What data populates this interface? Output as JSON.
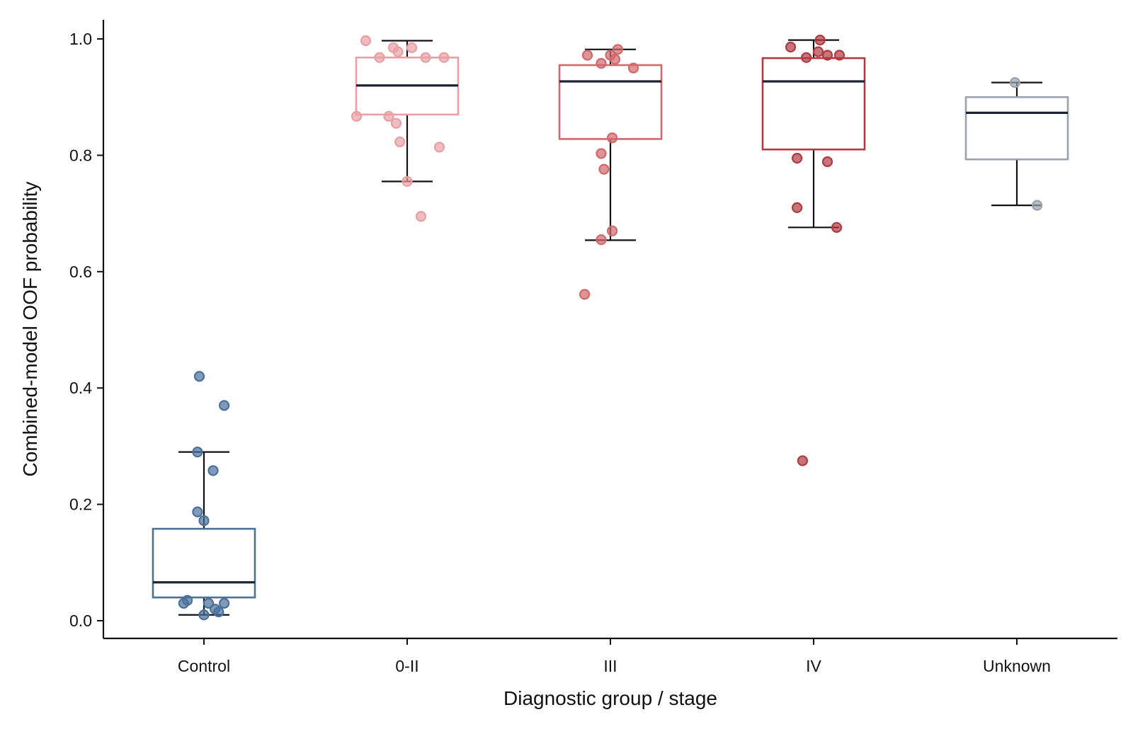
{
  "chart_data": {
    "type": "box",
    "title": "",
    "xlabel": "Diagnostic group / stage",
    "ylabel": "Combined-model OOF probability",
    "ylim": [
      -0.03,
      1.03
    ],
    "yticks": [
      0.0,
      0.2,
      0.4,
      0.6,
      0.8,
      1.0
    ],
    "ytick_labels": [
      "0.0",
      "0.2",
      "0.4",
      "0.6",
      "0.8",
      "1.0"
    ],
    "grid": false,
    "legend": "none",
    "categories": [
      "Control",
      "0-II",
      "III",
      "IV",
      "Unknown"
    ],
    "groups": [
      {
        "category": "Control",
        "color": "#4a719b",
        "box": {
          "whisker_low": 0.01,
          "q1": 0.04,
          "median": 0.066,
          "q3": 0.158,
          "whisker_high": 0.29
        },
        "points": [
          {
            "j": -0.05,
            "v": 0.42
          },
          {
            "j": 0.22,
            "v": 0.37
          },
          {
            "j": -0.07,
            "v": 0.29
          },
          {
            "j": 0.1,
            "v": 0.258
          },
          {
            "j": -0.07,
            "v": 0.187
          },
          {
            "j": 0.0,
            "v": 0.172
          },
          {
            "j": -0.22,
            "v": 0.03
          },
          {
            "j": -0.18,
            "v": 0.035
          },
          {
            "j": 0.05,
            "v": 0.03
          },
          {
            "j": 0.22,
            "v": 0.03
          },
          {
            "j": 0.12,
            "v": 0.02
          },
          {
            "j": 0.16,
            "v": 0.015
          },
          {
            "j": 0.0,
            "v": 0.01
          }
        ]
      },
      {
        "category": "0-II",
        "color": "#e8a0a4",
        "box": {
          "whisker_low": 0.755,
          "q1": 0.87,
          "median": 0.92,
          "q3": 0.968,
          "whisker_high": 0.997
        },
        "points": [
          {
            "j": -0.45,
            "v": 0.997
          },
          {
            "j": -0.15,
            "v": 0.985
          },
          {
            "j": 0.05,
            "v": 0.985
          },
          {
            "j": -0.1,
            "v": 0.978
          },
          {
            "j": -0.3,
            "v": 0.968
          },
          {
            "j": 0.2,
            "v": 0.968
          },
          {
            "j": 0.4,
            "v": 0.968
          },
          {
            "j": -0.55,
            "v": 0.867
          },
          {
            "j": -0.2,
            "v": 0.867
          },
          {
            "j": -0.12,
            "v": 0.855
          },
          {
            "j": -0.08,
            "v": 0.823
          },
          {
            "j": 0.35,
            "v": 0.814
          },
          {
            "j": 0.0,
            "v": 0.755
          },
          {
            "j": 0.15,
            "v": 0.695
          }
        ]
      },
      {
        "category": "III",
        "color": "#d0686c",
        "box": {
          "whisker_low": 0.654,
          "q1": 0.828,
          "median": 0.927,
          "q3": 0.955,
          "whisker_high": 0.982
        },
        "points": [
          {
            "j": 0.08,
            "v": 0.982
          },
          {
            "j": -0.25,
            "v": 0.972
          },
          {
            "j": 0.0,
            "v": 0.972
          },
          {
            "j": 0.05,
            "v": 0.965
          },
          {
            "j": -0.1,
            "v": 0.958
          },
          {
            "j": 0.25,
            "v": 0.95
          },
          {
            "j": 0.02,
            "v": 0.83
          },
          {
            "j": -0.1,
            "v": 0.803
          },
          {
            "j": -0.07,
            "v": 0.776
          },
          {
            "j": 0.02,
            "v": 0.67
          },
          {
            "j": -0.1,
            "v": 0.655
          },
          {
            "j": -0.28,
            "v": 0.561
          }
        ]
      },
      {
        "category": "IV",
        "color": "#b03a42",
        "box": {
          "whisker_low": 0.676,
          "q1": 0.81,
          "median": 0.927,
          "q3": 0.967,
          "whisker_high": 0.998
        },
        "points": [
          {
            "j": 0.07,
            "v": 0.998
          },
          {
            "j": -0.25,
            "v": 0.986
          },
          {
            "j": 0.05,
            "v": 0.978
          },
          {
            "j": -0.08,
            "v": 0.968
          },
          {
            "j": 0.15,
            "v": 0.972
          },
          {
            "j": 0.28,
            "v": 0.972
          },
          {
            "j": -0.18,
            "v": 0.795
          },
          {
            "j": 0.15,
            "v": 0.789
          },
          {
            "j": -0.18,
            "v": 0.71
          },
          {
            "j": 0.25,
            "v": 0.676
          },
          {
            "j": -0.12,
            "v": 0.275
          }
        ]
      },
      {
        "category": "Unknown",
        "color": "#9aa2ad",
        "box": {
          "whisker_low": 0.714,
          "q1": 0.793,
          "median": 0.873,
          "q3": 0.9,
          "whisker_high": 0.925
        },
        "points": [
          {
            "j": -0.02,
            "v": 0.925
          },
          {
            "j": 0.22,
            "v": 0.714
          }
        ]
      }
    ]
  }
}
